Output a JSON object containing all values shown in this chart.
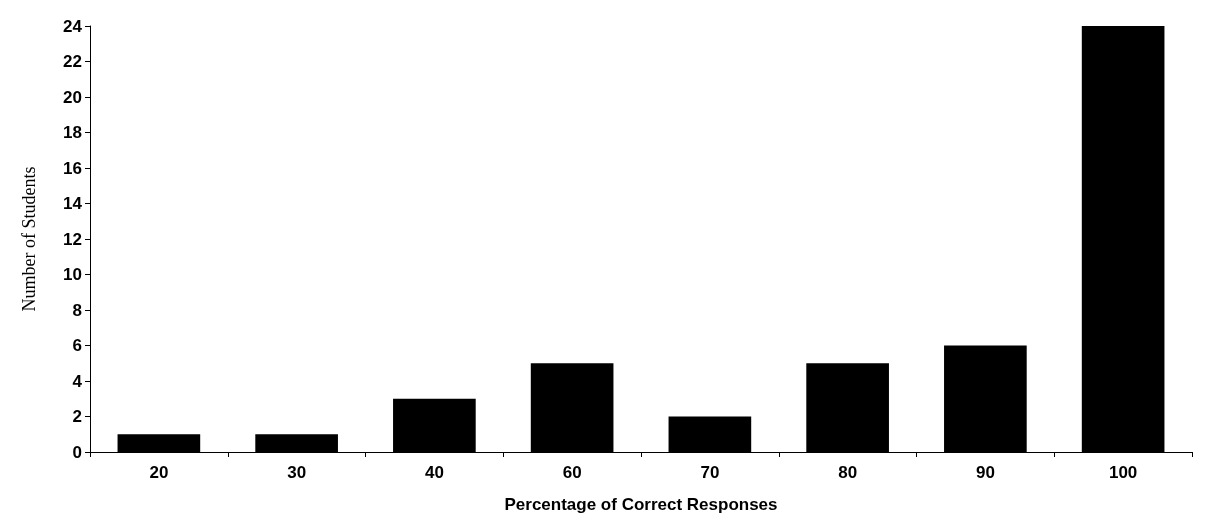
{
  "chart_data": {
    "type": "bar",
    "xlabel": "Percentage of Correct Responses",
    "ylabel": "Number of Students",
    "categories": [
      "20",
      "30",
      "40",
      "60",
      "70",
      "80",
      "90",
      "100"
    ],
    "values": [
      1,
      1,
      3,
      5,
      2,
      5,
      6,
      24
    ],
    "color": "#000000",
    "ylim": [
      0,
      24
    ],
    "yticks": [
      0,
      2,
      4,
      6,
      8,
      10,
      12,
      14,
      16,
      18,
      20,
      22,
      24
    ],
    "grid": false
  }
}
